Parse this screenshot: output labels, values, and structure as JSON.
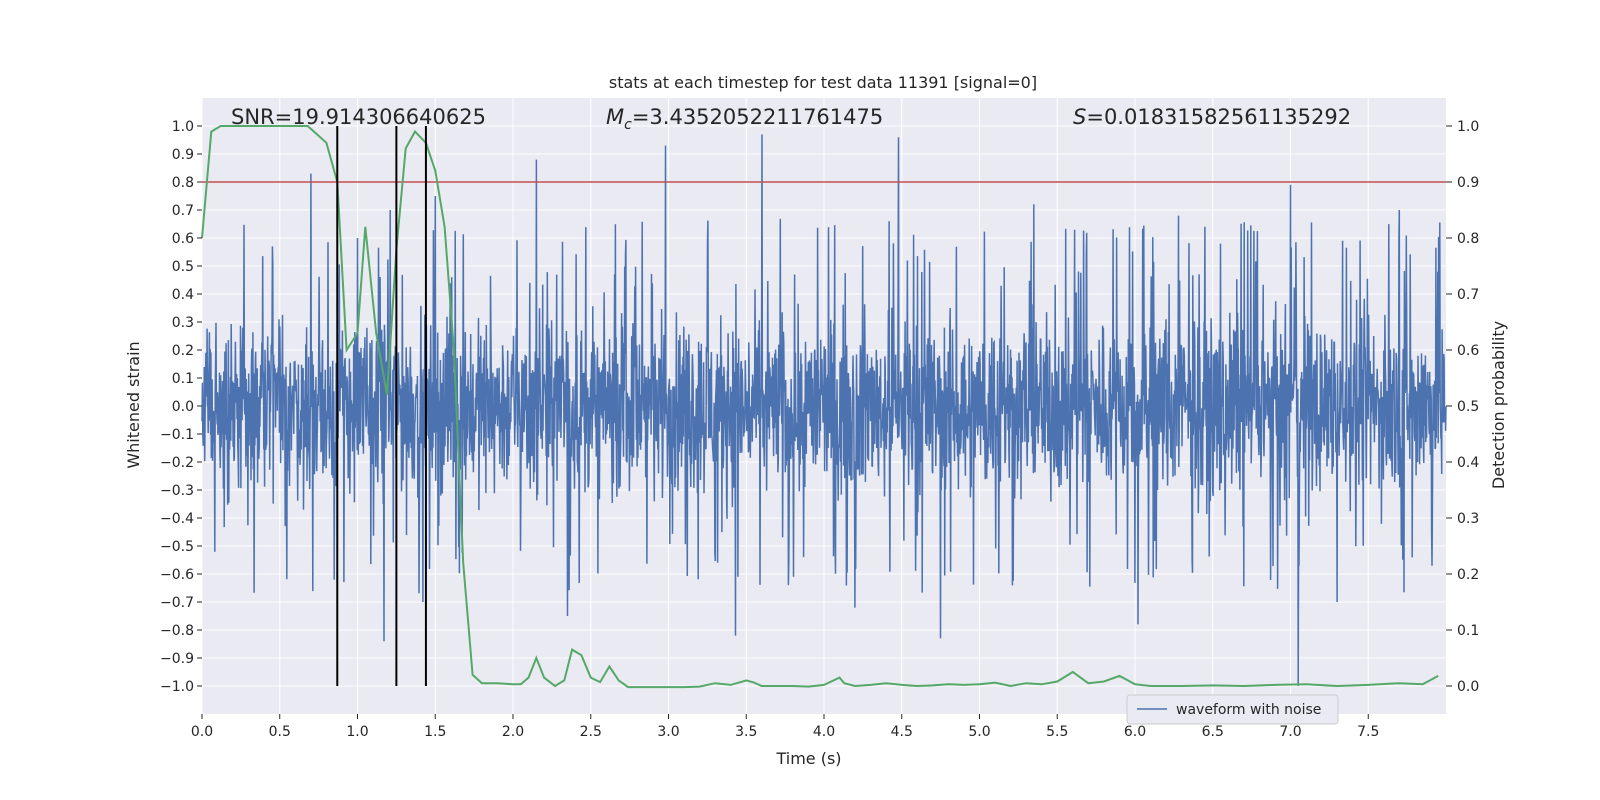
{
  "chart_data": {
    "type": "line",
    "title": "stats at each timestep for test data 11391 [signal=0]",
    "xlabel": "Time (s)",
    "ylabel": "Whitened strain",
    "y2label": "Detection probability",
    "xlim": [
      0.0,
      8.0
    ],
    "ylim": [
      -1.1,
      1.1
    ],
    "y2lim": [
      -0.05,
      1.05
    ],
    "grid": true,
    "legend_position": "bottom-right",
    "x_ticks": [
      "0.0",
      "0.5",
      "1.0",
      "1.5",
      "2.0",
      "2.5",
      "3.0",
      "3.5",
      "4.0",
      "4.5",
      "5.0",
      "5.5",
      "6.0",
      "6.5",
      "7.0",
      "7.5"
    ],
    "y_ticks": [
      "1.0",
      "0.9",
      "0.8",
      "0.7",
      "0.6",
      "0.5",
      "0.4",
      "0.3",
      "0.2",
      "0.1",
      "0.0",
      "−0.1",
      "−0.2",
      "−0.3",
      "−0.4",
      "−0.5",
      "−0.6",
      "−0.7",
      "−0.8",
      "−0.9",
      "−1.0"
    ],
    "y_tick_values": [
      1.0,
      0.9,
      0.8,
      0.7,
      0.6,
      0.5,
      0.4,
      0.3,
      0.2,
      0.1,
      0.0,
      -0.1,
      -0.2,
      -0.3,
      -0.4,
      -0.5,
      -0.6,
      -0.7,
      -0.8,
      -0.9,
      -1.0
    ],
    "y2_ticks": [
      "1.0",
      "0.9",
      "0.8",
      "0.7",
      "0.6",
      "0.5",
      "0.4",
      "0.3",
      "0.2",
      "0.1",
      "0.0"
    ],
    "y2_tick_values": [
      1.0,
      0.9,
      0.8,
      0.7,
      0.6,
      0.5,
      0.4,
      0.3,
      0.2,
      0.1,
      0.0
    ],
    "stats": {
      "snr": "SNR=19.914306640625",
      "mc_symbol": "M",
      "mc_subscript": "c",
      "mc_value": "=3.4352052211761475",
      "s_symbol": "S",
      "s_value": "=0.01831582561135292"
    },
    "threshold": 0.9,
    "vertical_markers": [
      0.87,
      1.25,
      1.44
    ],
    "waveform_amplitude": 0.42,
    "waveform_peaks": [
      {
        "x": 0.7,
        "y": 0.83
      },
      {
        "x": 0.85,
        "y": -0.62
      },
      {
        "x": 1.0,
        "y": 0.6
      },
      {
        "x": 1.17,
        "y": -0.84
      },
      {
        "x": 1.21,
        "y": 0.7
      },
      {
        "x": 1.42,
        "y": -0.7
      },
      {
        "x": 1.5,
        "y": 0.75
      },
      {
        "x": 2.15,
        "y": 0.88
      },
      {
        "x": 2.35,
        "y": -0.75
      },
      {
        "x": 2.98,
        "y": 0.93
      },
      {
        "x": 3.43,
        "y": -0.82
      },
      {
        "x": 3.6,
        "y": 0.97
      },
      {
        "x": 4.2,
        "y": -0.72
      },
      {
        "x": 4.48,
        "y": 0.96
      },
      {
        "x": 4.75,
        "y": -0.83
      },
      {
        "x": 5.35,
        "y": 0.72
      },
      {
        "x": 6.02,
        "y": -0.78
      },
      {
        "x": 6.28,
        "y": 0.68
      },
      {
        "x": 7.0,
        "y": 0.79
      },
      {
        "x": 7.05,
        "y": -1.0
      },
      {
        "x": 7.3,
        "y": -0.7
      },
      {
        "x": 7.7,
        "y": 0.7
      }
    ],
    "series": [
      {
        "name": "waveform with noise",
        "color": "#4c72b0"
      },
      {
        "color": "#55a868",
        "x": [
          0.0,
          0.06,
          0.12,
          0.18,
          0.3,
          0.45,
          0.6,
          0.68,
          0.8,
          0.87,
          0.93,
          1.0,
          1.05,
          1.12,
          1.19,
          1.25,
          1.31,
          1.37,
          1.44,
          1.5,
          1.56,
          1.62,
          1.68,
          1.74,
          1.8,
          1.9,
          2.0,
          2.05,
          2.1,
          2.15,
          2.2,
          2.27,
          2.33,
          2.38,
          2.44,
          2.5,
          2.56,
          2.62,
          2.68,
          2.74,
          2.8,
          2.9,
          3.0,
          3.1,
          3.2,
          3.3,
          3.4,
          3.5,
          3.55,
          3.6,
          3.7,
          3.8,
          3.9,
          4.0,
          4.1,
          4.13,
          4.2,
          4.3,
          4.4,
          4.5,
          4.6,
          4.7,
          4.8,
          4.9,
          5.0,
          5.1,
          5.2,
          5.3,
          5.4,
          5.5,
          5.6,
          5.7,
          5.8,
          5.9,
          6.0,
          6.1,
          6.3,
          6.5,
          6.7,
          6.9,
          7.1,
          7.3,
          7.5,
          7.7,
          7.85,
          7.95
        ],
        "y": [
          0.8,
          0.99,
          1.0,
          1.0,
          1.0,
          1.0,
          1.0,
          1.0,
          0.97,
          0.9,
          0.6,
          0.63,
          0.82,
          0.63,
          0.52,
          0.78,
          0.96,
          0.99,
          0.97,
          0.92,
          0.82,
          0.6,
          0.22,
          0.02,
          0.005,
          0.005,
          0.003,
          0.003,
          0.015,
          0.05,
          0.015,
          0.0,
          0.01,
          0.065,
          0.055,
          0.015,
          0.007,
          0.035,
          0.01,
          -0.002,
          -0.002,
          -0.002,
          -0.002,
          -0.002,
          -0.001,
          0.005,
          0.002,
          0.01,
          0.006,
          0.0,
          0.0,
          0.0,
          -0.001,
          0.002,
          0.015,
          0.005,
          0.0,
          0.002,
          0.005,
          0.002,
          0.0,
          0.001,
          0.003,
          0.002,
          0.003,
          0.006,
          0.0,
          0.005,
          0.003,
          0.008,
          0.025,
          0.005,
          0.008,
          0.018,
          0.003,
          0.0,
          0.0,
          0.001,
          0.0,
          0.002,
          0.003,
          0.0,
          0.002,
          0.005,
          0.003,
          0.018
        ]
      }
    ]
  }
}
